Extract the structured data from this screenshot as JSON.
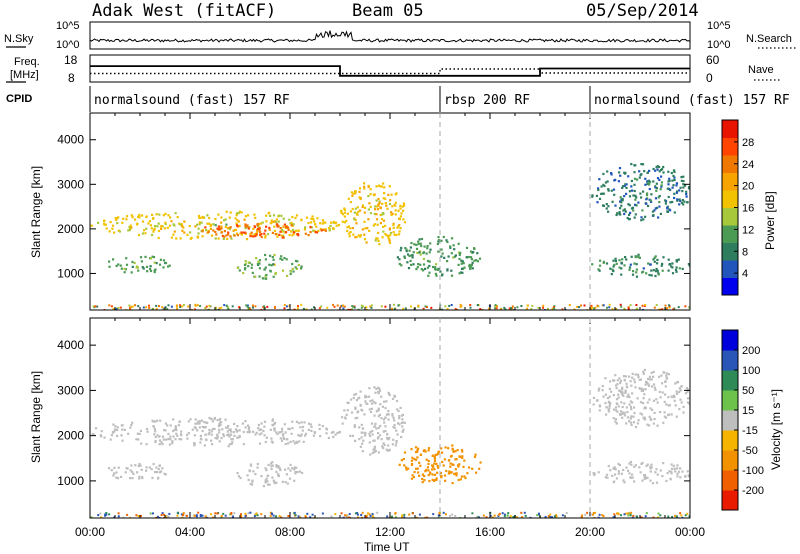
{
  "header": {
    "radar": "Adak West (fitACF)",
    "beam": "Beam 05",
    "date": "05/Sep/2014"
  },
  "top_panels": {
    "sky_label": "N.Sky",
    "search_label": "N.Search",
    "sky_ticks": [
      "10^5",
      "10^0"
    ],
    "search_ticks": [
      "10^5",
      "10^0"
    ],
    "freq_label_1": "Freq.",
    "freq_label_2": "[MHz]",
    "freq_ticks": [
      "18",
      "8"
    ],
    "nave_label": "Nave",
    "nave_ticks": [
      "60",
      "0"
    ],
    "cpid_label": "CPID"
  },
  "cpid_segments": [
    {
      "label": "normalsound (fast) 157 RF",
      "start_hour": 0,
      "end_hour": 14
    },
    {
      "label": "rbsp 200 RF",
      "start_hour": 14,
      "end_hour": 20
    },
    {
      "label": "normalsound (fast) 157 RF",
      "start_hour": 20,
      "end_hour": 24
    }
  ],
  "colors": {
    "power_scale": [
      "#0000ee",
      "#2255bb",
      "#2e7d5e",
      "#4c9b55",
      "#a8c83c",
      "#f2c200",
      "#f7a400",
      "#f07800",
      "#ff4400",
      "#e81400"
    ],
    "velocity_scale": [
      "#0000dd",
      "#2a56b8",
      "#2e8b57",
      "#6cc24a",
      "#bebebe",
      "#bebebe",
      "#f5b400",
      "#f39200",
      "#f06000",
      "#e81a00"
    ],
    "grey": "#bebebe"
  },
  "chart_data": [
    {
      "type": "heatmap",
      "title": "",
      "quantity": "Power",
      "xlabel": "",
      "ylabel": "Slant Range [km]",
      "x_unit": "hour UT",
      "xlim": [
        0,
        24
      ],
      "ylim": [
        180,
        4600
      ],
      "x_ticks": [
        "00:00",
        "04:00",
        "08:00",
        "12:00",
        "16:00",
        "20:00",
        "00:00"
      ],
      "y_ticks": [
        "1000",
        "2000",
        "3000",
        "4000"
      ],
      "colorbar": {
        "label": "Power [dB]",
        "ticks": [
          "4",
          "8",
          "12",
          "16",
          "20",
          "24",
          "28"
        ],
        "range": [
          0,
          30
        ]
      },
      "regions": [
        {
          "t": [
            0.0,
            10.0
          ],
          "r": [
            1780,
            2420
          ],
          "level": 16
        },
        {
          "t": [
            4.0,
            9.5
          ],
          "r": [
            1820,
            2150
          ],
          "level": 25
        },
        {
          "t": [
            0.6,
            3.2
          ],
          "r": [
            1030,
            1420
          ],
          "level": 10
        },
        {
          "t": [
            5.8,
            8.5
          ],
          "r": [
            900,
            1450
          ],
          "level": 11
        },
        {
          "t": [
            10.0,
            12.6
          ],
          "r": [
            1600,
            3100
          ],
          "level": 17
        },
        {
          "t": [
            12.2,
            15.6
          ],
          "r": [
            950,
            1850
          ],
          "level": 9
        },
        {
          "t": [
            20.0,
            24.0
          ],
          "r": [
            2200,
            3500
          ],
          "level": 6
        },
        {
          "t": [
            20.0,
            24.0
          ],
          "r": [
            950,
            1450
          ],
          "level": 8
        }
      ]
    },
    {
      "type": "heatmap",
      "title": "",
      "quantity": "Velocity",
      "xlabel": "Time UT",
      "ylabel": "Slant Range [km]",
      "x_unit": "hour UT",
      "xlim": [
        0,
        24
      ],
      "ylim": [
        180,
        4600
      ],
      "x_ticks": [
        "00:00",
        "04:00",
        "08:00",
        "12:00",
        "16:00",
        "20:00",
        "00:00"
      ],
      "y_ticks": [
        "1000",
        "2000",
        "3000",
        "4000"
      ],
      "colorbar": {
        "label": "Velocity [m s⁻¹]",
        "ticks": [
          "200",
          "100",
          "50",
          "15",
          "-15",
          "-50",
          "-100",
          "-200"
        ]
      },
      "regions": [
        {
          "t": [
            0.0,
            10.0
          ],
          "r": [
            1780,
            2420
          ],
          "velocity": 0
        },
        {
          "t": [
            0.6,
            3.2
          ],
          "r": [
            1030,
            1420
          ],
          "velocity": 0
        },
        {
          "t": [
            5.8,
            8.5
          ],
          "r": [
            900,
            1450
          ],
          "velocity": 0
        },
        {
          "t": [
            10.0,
            12.6
          ],
          "r": [
            1600,
            3100
          ],
          "velocity": 0
        },
        {
          "t": [
            12.2,
            15.6
          ],
          "r": [
            950,
            1850
          ],
          "velocity": -75
        },
        {
          "t": [
            20.0,
            24.0
          ],
          "r": [
            2200,
            3500
          ],
          "velocity": 0
        },
        {
          "t": [
            20.0,
            24.0
          ],
          "r": [
            950,
            1450
          ],
          "velocity": 0
        }
      ]
    }
  ]
}
